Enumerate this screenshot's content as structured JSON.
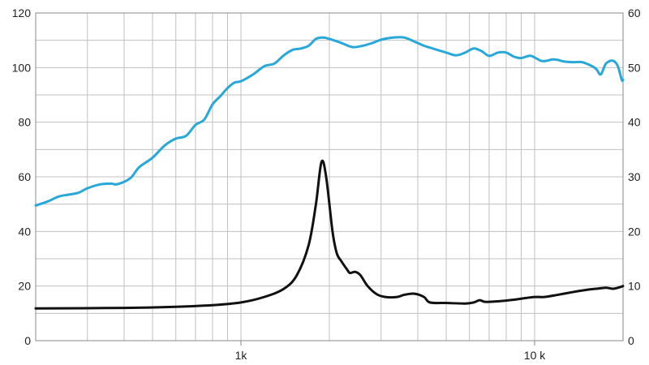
{
  "chart_data": {
    "type": "line",
    "x_scale": "log",
    "xlim": [
      200,
      20000
    ],
    "x_ticks": [
      {
        "value": 1000,
        "label": "1k"
      },
      {
        "value": 10000,
        "label": "10 k"
      }
    ],
    "y_left": {
      "lim": [
        0,
        120
      ],
      "ticks": [
        0,
        20,
        40,
        60,
        80,
        100,
        120
      ],
      "tick_labels": [
        "0",
        "20",
        "40",
        "60",
        "80",
        "100",
        "120"
      ]
    },
    "y_right": {
      "lim": [
        0,
        60
      ],
      "ticks": [
        0,
        10,
        20,
        30,
        40,
        50,
        60
      ],
      "tick_labels": [
        "0",
        "10",
        "20",
        "30",
        "40",
        "50",
        "60"
      ]
    },
    "grid": true,
    "series": [
      {
        "color": "#28a8d8",
        "axis": "left",
        "points": [
          [
            200,
            49.5
          ],
          [
            220,
            51
          ],
          [
            240,
            52.8
          ],
          [
            260,
            53.5
          ],
          [
            280,
            54.2
          ],
          [
            300,
            55.8
          ],
          [
            330,
            57.2
          ],
          [
            360,
            57.5
          ],
          [
            380,
            57.3
          ],
          [
            420,
            59.5
          ],
          [
            450,
            63.5
          ],
          [
            500,
            67
          ],
          [
            550,
            71.5
          ],
          [
            600,
            74
          ],
          [
            650,
            75
          ],
          [
            700,
            79
          ],
          [
            750,
            81
          ],
          [
            800,
            86.5
          ],
          [
            850,
            89.5
          ],
          [
            900,
            92.5
          ],
          [
            950,
            94.5
          ],
          [
            1000,
            95
          ],
          [
            1100,
            97.5
          ],
          [
            1200,
            100.5
          ],
          [
            1300,
            101.5
          ],
          [
            1400,
            104.5
          ],
          [
            1500,
            106.5
          ],
          [
            1600,
            107
          ],
          [
            1700,
            108
          ],
          [
            1800,
            110.5
          ],
          [
            1900,
            111
          ],
          [
            2000,
            110.5
          ],
          [
            2200,
            109
          ],
          [
            2400,
            107.5
          ],
          [
            2600,
            108
          ],
          [
            2800,
            109
          ],
          [
            3000,
            110.2
          ],
          [
            3300,
            111
          ],
          [
            3600,
            111
          ],
          [
            3900,
            109.5
          ],
          [
            4200,
            108
          ],
          [
            4500,
            107
          ],
          [
            5000,
            105.5
          ],
          [
            5400,
            104.5
          ],
          [
            5800,
            105.5
          ],
          [
            6200,
            107
          ],
          [
            6600,
            106
          ],
          [
            7000,
            104.3
          ],
          [
            7500,
            105.5
          ],
          [
            8000,
            105.5
          ],
          [
            8500,
            104
          ],
          [
            9000,
            103.5
          ],
          [
            9700,
            104.3
          ],
          [
            10500,
            102.5
          ],
          [
            11000,
            102.5
          ],
          [
            11500,
            103
          ],
          [
            12000,
            102.8
          ],
          [
            12500,
            102.3
          ],
          [
            13500,
            102
          ],
          [
            14500,
            102
          ],
          [
            15500,
            100.8
          ],
          [
            16200,
            99.5
          ],
          [
            16800,
            97.5
          ],
          [
            17500,
            101.5
          ],
          [
            18500,
            102.5
          ],
          [
            19200,
            100.5
          ],
          [
            19800,
            95.5
          ],
          [
            20000,
            95.5
          ]
        ]
      },
      {
        "color": "#111111",
        "axis": "right",
        "points": [
          [
            200,
            5.9
          ],
          [
            400,
            6
          ],
          [
            600,
            6.2
          ],
          [
            800,
            6.5
          ],
          [
            1000,
            7
          ],
          [
            1200,
            8
          ],
          [
            1400,
            9.5
          ],
          [
            1550,
            12
          ],
          [
            1700,
            17.5
          ],
          [
            1800,
            25
          ],
          [
            1880,
            32.7
          ],
          [
            1950,
            30
          ],
          [
            2050,
            20
          ],
          [
            2120,
            16
          ],
          [
            2200,
            14.5
          ],
          [
            2300,
            13
          ],
          [
            2350,
            12.4
          ],
          [
            2450,
            12.6
          ],
          [
            2550,
            12
          ],
          [
            2700,
            10
          ],
          [
            2900,
            8.5
          ],
          [
            3100,
            8
          ],
          [
            3400,
            8
          ],
          [
            3600,
            8.4
          ],
          [
            3900,
            8.6
          ],
          [
            4200,
            8
          ],
          [
            4400,
            7
          ],
          [
            5000,
            6.9
          ],
          [
            5800,
            6.8
          ],
          [
            6200,
            7
          ],
          [
            6500,
            7.4
          ],
          [
            6800,
            7.1
          ],
          [
            7500,
            7.2
          ],
          [
            8500,
            7.5
          ],
          [
            9300,
            7.8
          ],
          [
            10000,
            8
          ],
          [
            10800,
            8
          ],
          [
            12000,
            8.4
          ],
          [
            13500,
            8.9
          ],
          [
            15000,
            9.3
          ],
          [
            16200,
            9.5
          ],
          [
            17500,
            9.7
          ],
          [
            18500,
            9.5
          ],
          [
            19500,
            9.8
          ],
          [
            20000,
            10
          ]
        ]
      }
    ]
  }
}
